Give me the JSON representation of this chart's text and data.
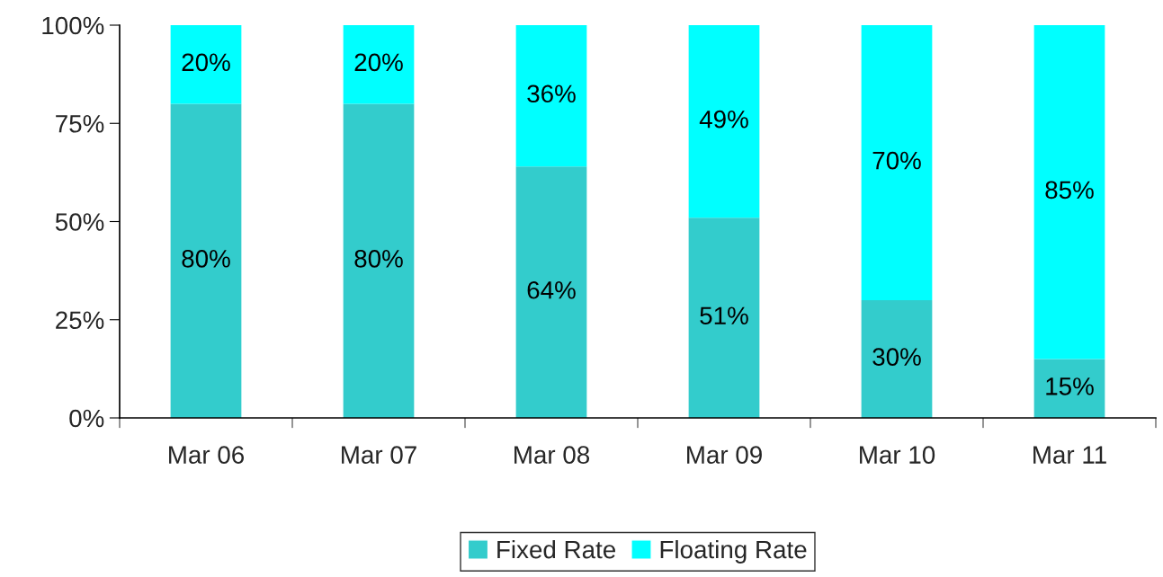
{
  "chart_data": {
    "type": "bar",
    "stacked": true,
    "categories": [
      "Mar 06",
      "Mar 07",
      "Mar 08",
      "Mar 09",
      "Mar 10",
      "Mar 11"
    ],
    "series": [
      {
        "name": "Fixed Rate",
        "color": "#33cccc",
        "values": [
          80,
          80,
          64,
          51,
          30,
          15
        ],
        "value_labels": [
          "80%",
          "80%",
          "64%",
          "51%",
          "30%",
          "15%"
        ]
      },
      {
        "name": "Floating Rate",
        "color": "#00ffff",
        "values": [
          20,
          20,
          36,
          49,
          70,
          85
        ],
        "value_labels": [
          "20%",
          "20%",
          "36%",
          "49%",
          "70%",
          "85%"
        ]
      }
    ],
    "ylim": [
      0,
      100
    ],
    "yticks": [
      {
        "value": 0,
        "label": "0%"
      },
      {
        "value": 25,
        "label": "25%"
      },
      {
        "value": 50,
        "label": "50%"
      },
      {
        "value": 75,
        "label": "75%"
      },
      {
        "value": 100,
        "label": "100%"
      }
    ],
    "grid": false,
    "legend": "bottom"
  }
}
